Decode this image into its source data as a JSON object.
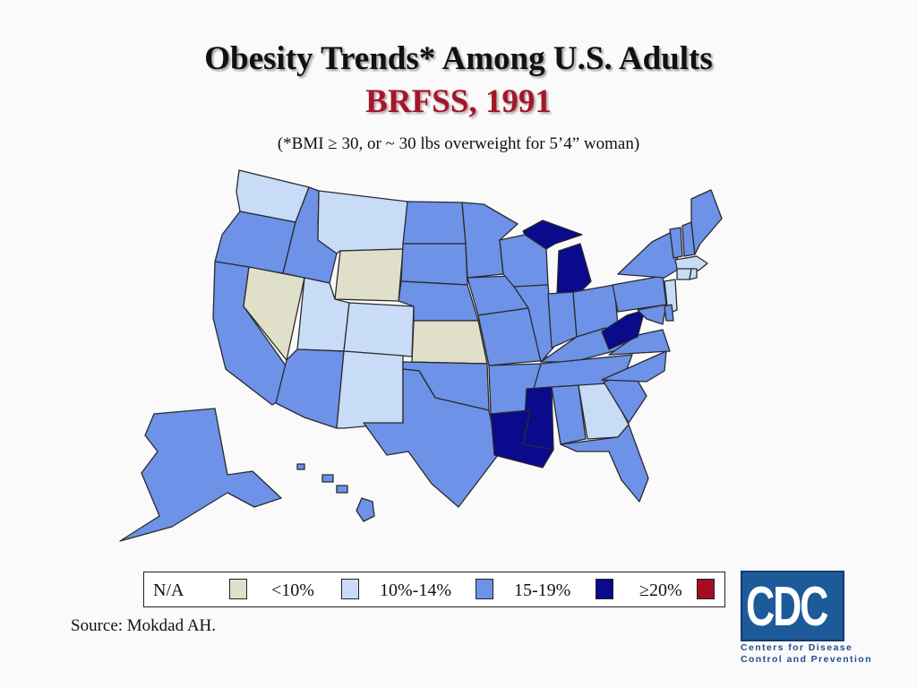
{
  "title": "Obesity Trends* Among U.S. Adults",
  "subtitle": "BRFSS, 1991",
  "note": "(*BMI ≥ 30, or ~ 30 lbs overweight for 5’4” woman)",
  "source": "Source: Mokdad AH.",
  "logo": {
    "text": "CDC",
    "caption_line1": "Centers for Disease",
    "caption_line2": "Control and Prevention"
  },
  "legend": [
    {
      "label": "N/A",
      "color": "#e0dfc9"
    },
    {
      "label": "<10%",
      "color": "#c8dcf7"
    },
    {
      "label": "10%-14%",
      "color": "#6d92e8"
    },
    {
      "label": "15-19%",
      "color": "#0a0a8c"
    },
    {
      "label": "≥20%",
      "color": "#a50d25"
    }
  ],
  "colors": {
    "no_data": "#e0dfc9",
    "light": "#c8dcf7",
    "medium": "#6d92e8",
    "dark": "#0a0a8c",
    "top": "#a50d25"
  },
  "state_categories": {
    "no_data": [
      "WY",
      "NV",
      "KS"
    ],
    "light": [
      "WA",
      "MT",
      "UT",
      "CO",
      "NM",
      "GA",
      "NJ",
      "MA",
      "CT",
      "RI"
    ],
    "medium": [
      "OR",
      "CA",
      "ID",
      "AZ",
      "ND",
      "SD",
      "NE",
      "OK",
      "TX",
      "MN",
      "IA",
      "MO",
      "AR",
      "WI",
      "IL",
      "IN",
      "OH",
      "KY",
      "TN",
      "AL",
      "FL",
      "SC",
      "NC",
      "VA",
      "PA",
      "NY",
      "VT",
      "NH",
      "ME",
      "DE",
      "MD",
      "AK",
      "HI"
    ],
    "dark": [
      "MI",
      "WV",
      "MS",
      "LA"
    ],
    "top": []
  }
}
